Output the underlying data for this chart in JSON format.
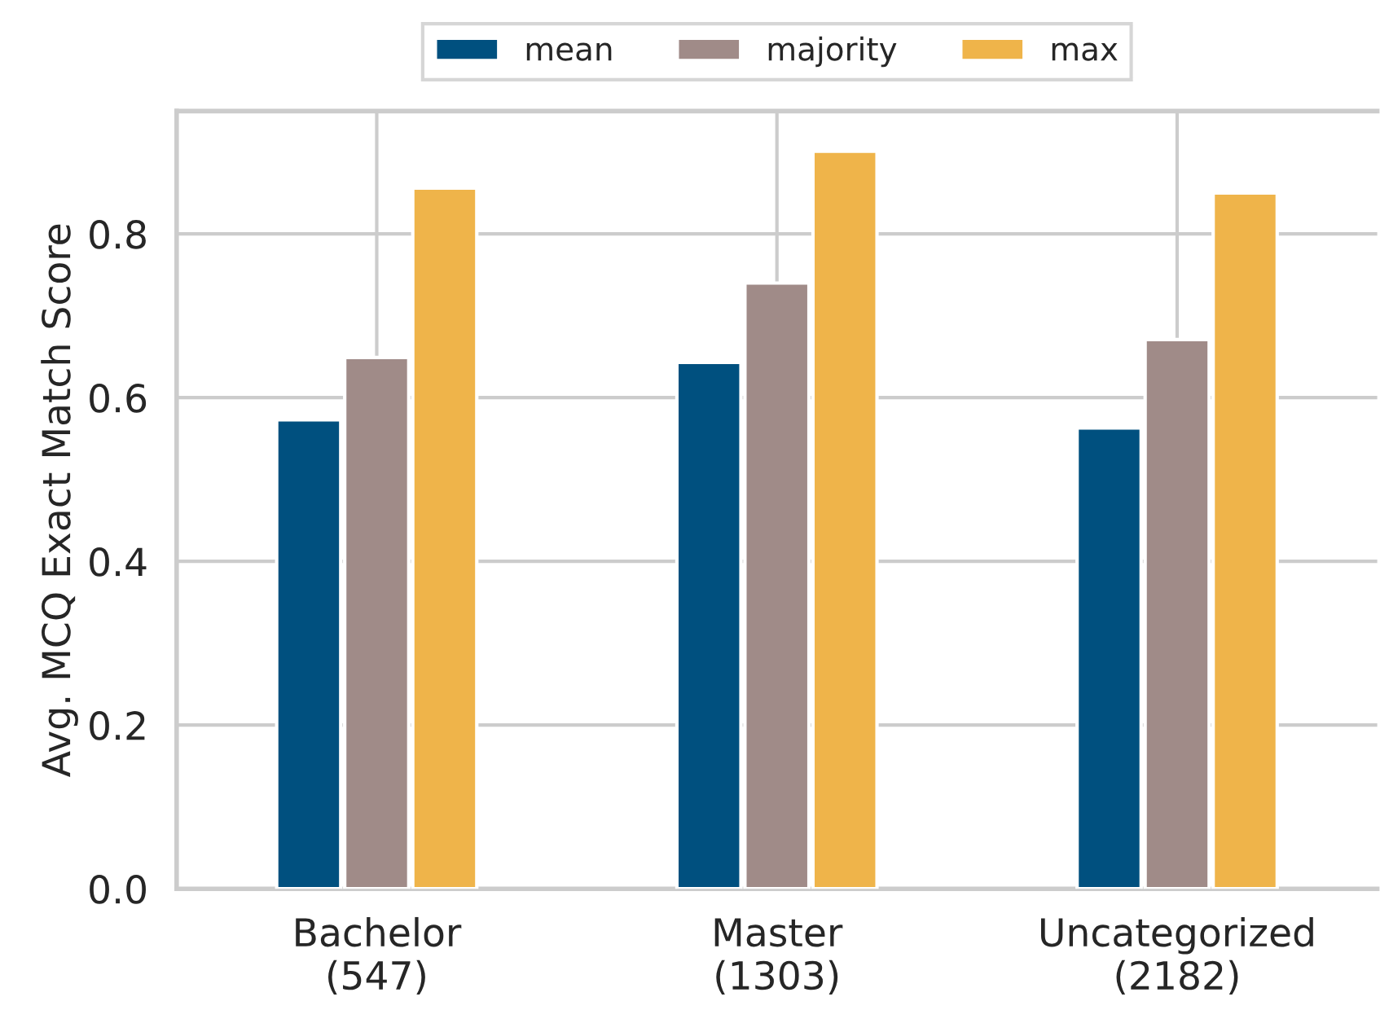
{
  "chart_data": {
    "type": "bar",
    "ylabel": "Avg. MCQ Exact Match Score",
    "categories": [
      "Bachelor\n(547)",
      "Master\n(1303)",
      "Uncategorized\n(2182)"
    ],
    "series": [
      {
        "name": "mean",
        "color": "#00507f",
        "values": [
          0.573,
          0.643,
          0.563
        ]
      },
      {
        "name": "majority",
        "color": "#a08b88",
        "values": [
          0.649,
          0.74,
          0.671
        ]
      },
      {
        "name": "max",
        "color": "#efb44a",
        "values": [
          0.856,
          0.901,
          0.85
        ]
      }
    ],
    "ylim": [
      0,
      0.95
    ],
    "yticks": [
      {
        "value": 0,
        "label": "0.0"
      },
      0.2,
      0.4,
      0.6,
      0.8
    ],
    "grid": true,
    "legend": "top"
  }
}
